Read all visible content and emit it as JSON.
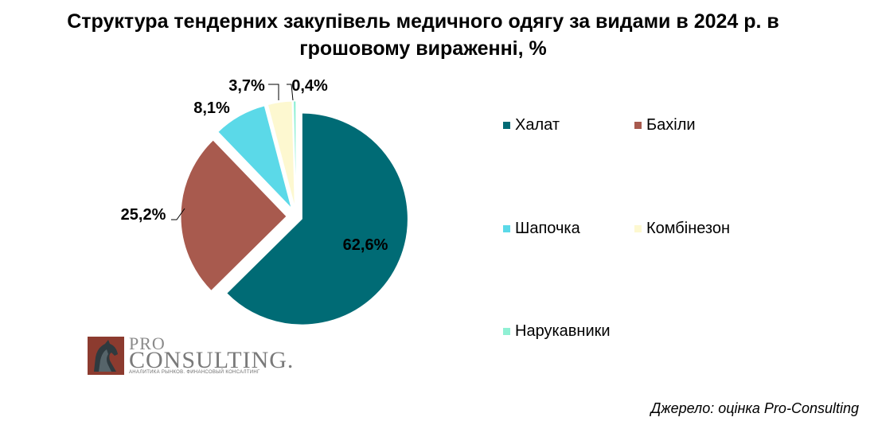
{
  "title": {
    "line1": "Структура тендерних закупівель медичного одягу за видами в 2024 р. в",
    "line2": "грошовому вираженні, %"
  },
  "chart_data": {
    "type": "pie",
    "labels": [
      "Халат",
      "Бахіли",
      "Шапочка",
      "Комбінезон",
      "Нарукавники"
    ],
    "values": [
      62.6,
      25.2,
      8.1,
      3.7,
      0.4
    ],
    "data_labels": [
      "62,6%",
      "25,2%",
      "8,1%",
      "3,7%",
      "0,4%"
    ],
    "colors": [
      "#006b75",
      "#a85a4e",
      "#5bd9e8",
      "#fdf8d0",
      "#90f0d4"
    ],
    "legend_position": "right",
    "exploded": true
  },
  "source": "Джерело: оцінка Pro-Consulting",
  "logo": {
    "pro": "PRO",
    "consulting": "CONSULTING.",
    "tagline": "АНАЛИТИКА РЫНКОВ. ФИНАНСОВЫЙ КОНСАЛТИНГ"
  }
}
